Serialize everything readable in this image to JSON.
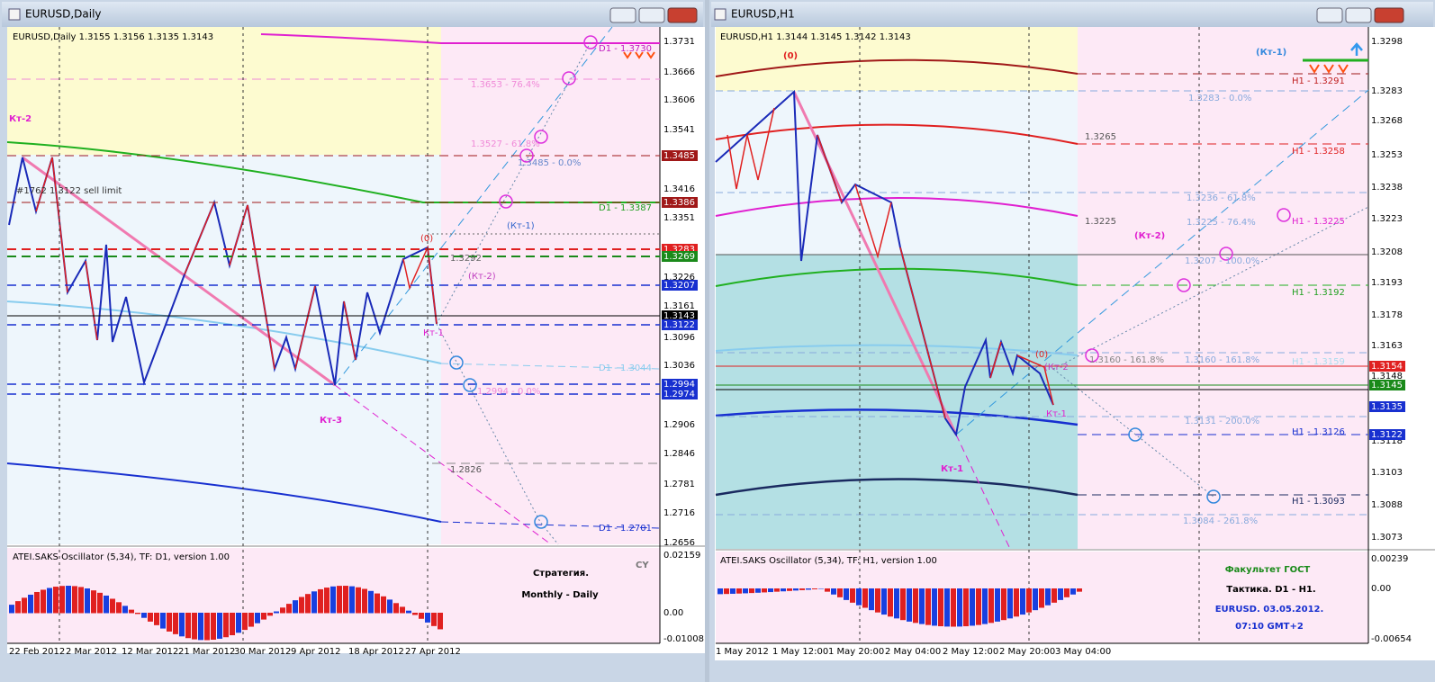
{
  "windows": [
    {
      "title": "EURUSD,Daily",
      "info": "EURUSD,Daily  1.3155 1.3156 1.3135 1.3143",
      "price_axis": [
        "1.3731",
        "1.3666",
        "1.3606",
        "1.3541",
        "1.3416",
        "1.3351",
        "1.3226",
        "1.3161",
        "1.3096",
        "1.3036",
        "1.2906",
        "1.2846",
        "1.2781",
        "1.2716",
        "1.2656"
      ],
      "price_boxes": [
        {
          "label": "1.3485",
          "color": "#a01818"
        },
        {
          "label": "1.3386",
          "color": "#a01818"
        },
        {
          "label": "1.3283",
          "color": "#e02020"
        },
        {
          "label": "1.3269",
          "color": "#1a8a1a"
        },
        {
          "label": "1.3207",
          "color": "#1830d0"
        },
        {
          "label": "1.3143",
          "color": "#000000"
        },
        {
          "label": "1.3122",
          "color": "#1830d0"
        },
        {
          "label": "1.2994",
          "color": "#1830d0"
        },
        {
          "label": "1.2974",
          "color": "#1830d0"
        }
      ],
      "time_axis": [
        "22 Feb 2012",
        "2 Mar 2012",
        "12 Mar 2012",
        "21 Mar 2012",
        "30 Mar 2012",
        "9 Apr 2012",
        "18 Apr 2012",
        "27 Apr 2012"
      ],
      "annotations": [
        "Кт-2",
        "#1762 1.3122 sell limit",
        "Кт-3",
        "(0)",
        "1.3292",
        "(Кт-2)",
        "Кт-1",
        "(Кт-1)",
        "1.3653 - 76.4%",
        "1.3527 - 61.8%",
        "1.3485 - 0.0%",
        "D1 - 1.3387",
        "D1 - 1.3730",
        "D1 - 1.3044",
        "1.2994 - 0.0%",
        "1.2826",
        "D1 - 1.2701"
      ],
      "oscillator": {
        "label": "ATEI.SAKS Oscillator (5,34), TF: D1,  version 1.00",
        "axis": [
          "0.02159",
          "0.00",
          "-0.01008"
        ]
      },
      "notes": [
        "CY",
        "Стратегия.",
        "Monthly - Daily"
      ]
    },
    {
      "title": "EURUSD,H1",
      "info": "EURUSD,H1  1.3144 1.3145 1.3142 1.3143",
      "price_axis": [
        "1.3298",
        "1.3283",
        "1.3268",
        "1.3253",
        "1.3238",
        "1.3223",
        "1.3208",
        "1.3193",
        "1.3178",
        "1.3163",
        "1.3148",
        "1.3118",
        "1.3103",
        "1.3088",
        "1.3073"
      ],
      "price_boxes": [
        {
          "label": "1.3154",
          "color": "#e02020"
        },
        {
          "label": "1.3145",
          "color": "#1a8a1a"
        },
        {
          "label": "1.3135",
          "color": "#1830d0"
        },
        {
          "label": "1.3122",
          "color": "#1830d0"
        }
      ],
      "time_axis": [
        "1 May 2012",
        "1 May 12:00",
        "1 May 20:00",
        "2 May 04:00",
        "2 May 12:00",
        "2 May 20:00",
        "3 May 04:00"
      ],
      "annotations": [
        "(0)",
        "(Кт-1)",
        "H1 - 1.3291",
        "1.3283 - 0.0%",
        "1.3265",
        "H1 - 1.3258",
        "1.3236 - 61.8%",
        "1.3225",
        "1.3225 - 76.4%",
        "H1 - 1.3225",
        "(Кт-2)",
        "1.3207 - 100.0%",
        "H1 - 1.3192",
        "(0)",
        "1.3160 - 161.8%",
        "1.3160 - 161.8%",
        "H1 - 1.3159",
        "(Кт-2",
        "Кт-1",
        "1.3131 - 200.0%",
        "H1 - 1.3126",
        "Кт-1",
        "H1 - 1.3093",
        "1.3084 - 261.8%"
      ],
      "oscillator": {
        "label": "ATEI.SAKS Oscillator (5,34), TF: H1,  version 1.00",
        "axis": [
          "0.00239",
          "0.00",
          "-0.00654"
        ]
      },
      "notes": [
        "Факультет ГОСТ",
        "Тактика. D1 - H1.",
        "EURUSD. 03.05.2012.",
        "07:10  GMT+2"
      ]
    }
  ]
}
